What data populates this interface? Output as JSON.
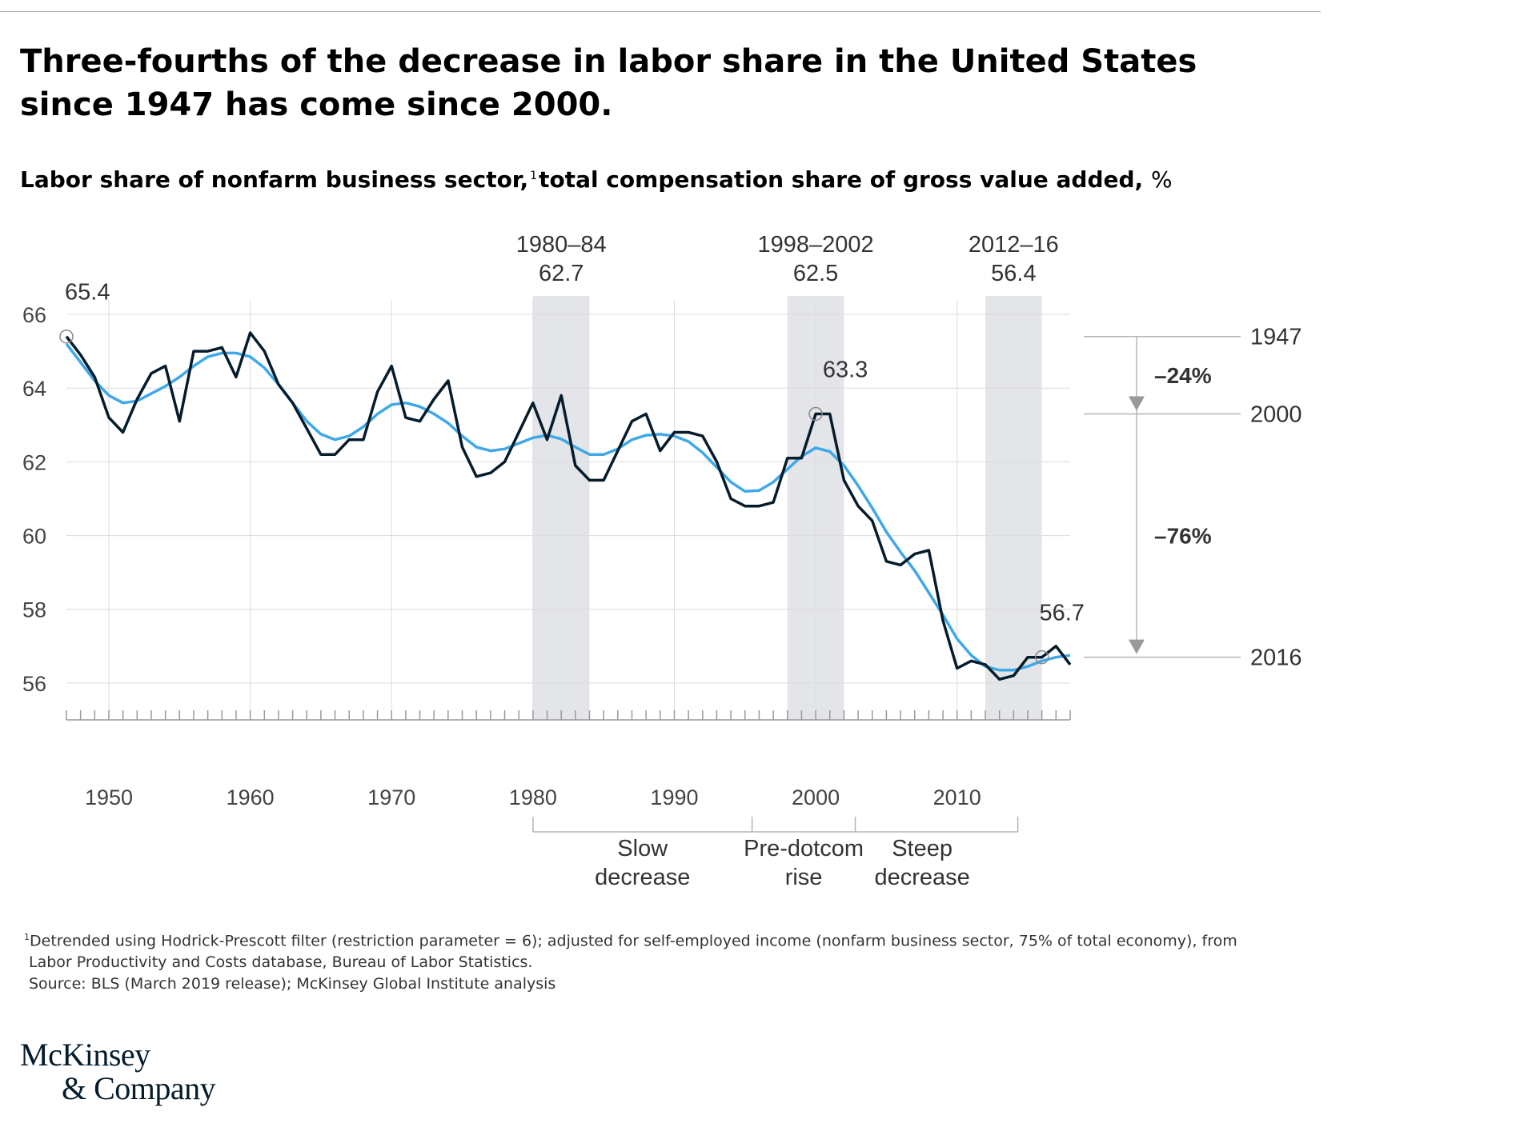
{
  "title": "Three-fourths of the decrease in labor share in the United States since 1947 has come since 2000.",
  "subtitle": {
    "main": "Labor share of nonfarm business sector,",
    "footnote_mark": "1",
    "rest": "total compensation share of gross value added,",
    "unit": "%"
  },
  "chart_data": {
    "type": "line",
    "xlim": [
      1947,
      2018
    ],
    "ylim": [
      55,
      66.5
    ],
    "yticks": [
      66,
      64,
      62,
      60,
      58,
      56
    ],
    "xticks": [
      1950,
      1960,
      1970,
      1980,
      1990,
      2000,
      2010
    ],
    "grid": true,
    "colors": {
      "actual": "#051c2c",
      "trend": "#3fa8e8",
      "shade": "#e3e5e8",
      "annotation": "#999999"
    },
    "series": [
      {
        "key": "actual",
        "x": [
          1947,
          1948,
          1949,
          1950,
          1951,
          1952,
          1953,
          1954,
          1955,
          1956,
          1957,
          1958,
          1959,
          1960,
          1961,
          1962,
          1963,
          1964,
          1965,
          1966,
          1967,
          1968,
          1969,
          1970,
          1971,
          1972,
          1973,
          1974,
          1975,
          1976,
          1977,
          1978,
          1979,
          1980,
          1981,
          1982,
          1983,
          1984,
          1985,
          1986,
          1987,
          1988,
          1989,
          1990,
          1991,
          1992,
          1993,
          1994,
          1995,
          1996,
          1997,
          1998,
          1999,
          2000,
          2001,
          2002,
          2003,
          2004,
          2005,
          2006,
          2007,
          2008,
          2009,
          2010,
          2011,
          2012,
          2013,
          2014,
          2015,
          2016,
          2017,
          2018
        ],
        "values": [
          65.4,
          64.9,
          64.3,
          63.2,
          62.8,
          63.7,
          64.4,
          64.6,
          63.1,
          65.0,
          65.0,
          65.1,
          64.3,
          65.5,
          65.0,
          64.1,
          63.6,
          62.9,
          62.2,
          62.2,
          62.6,
          62.6,
          63.9,
          64.6,
          63.2,
          63.1,
          63.7,
          64.2,
          62.4,
          61.6,
          61.7,
          62.0,
          62.8,
          63.6,
          62.6,
          63.8,
          61.9,
          61.5,
          61.5,
          62.3,
          63.1,
          63.3,
          62.3,
          62.8,
          62.8,
          62.7,
          62.0,
          61.0,
          60.8,
          60.8,
          60.9,
          62.1,
          62.1,
          63.3,
          63.3,
          61.5,
          60.8,
          60.4,
          59.3,
          59.2,
          59.5,
          59.6,
          57.7,
          56.4,
          56.6,
          56.5,
          56.1,
          56.2,
          56.7,
          56.7,
          57.0,
          56.5
        ]
      },
      {
        "key": "trend",
        "x": [
          1947,
          1948,
          1949,
          1950,
          1951,
          1952,
          1953,
          1954,
          1955,
          1956,
          1957,
          1958,
          1959,
          1960,
          1961,
          1962,
          1963,
          1964,
          1965,
          1966,
          1967,
          1968,
          1969,
          1970,
          1971,
          1972,
          1973,
          1974,
          1975,
          1976,
          1977,
          1978,
          1979,
          1980,
          1981,
          1982,
          1983,
          1984,
          1985,
          1986,
          1987,
          1988,
          1989,
          1990,
          1991,
          1992,
          1993,
          1994,
          1995,
          1996,
          1997,
          1998,
          1999,
          2000,
          2001,
          2002,
          2003,
          2004,
          2005,
          2006,
          2007,
          2008,
          2009,
          2010,
          2011,
          2012,
          2013,
          2014,
          2015,
          2016,
          2017,
          2018
        ],
        "values": [
          65.2,
          64.7,
          64.2,
          63.8,
          63.6,
          63.65,
          63.85,
          64.05,
          64.3,
          64.6,
          64.85,
          64.95,
          64.95,
          64.85,
          64.55,
          64.1,
          63.6,
          63.1,
          62.75,
          62.6,
          62.7,
          62.95,
          63.3,
          63.55,
          63.6,
          63.5,
          63.3,
          63.05,
          62.7,
          62.4,
          62.3,
          62.35,
          62.5,
          62.65,
          62.72,
          62.62,
          62.4,
          62.2,
          62.2,
          62.35,
          62.6,
          62.72,
          62.75,
          62.7,
          62.55,
          62.25,
          61.85,
          61.45,
          61.2,
          61.22,
          61.45,
          61.8,
          62.15,
          62.38,
          62.28,
          61.9,
          61.35,
          60.75,
          60.1,
          59.55,
          59.05,
          58.45,
          57.85,
          57.2,
          56.75,
          56.45,
          56.35,
          56.35,
          56.45,
          56.6,
          56.7,
          56.75
        ]
      }
    ],
    "shaded_periods": [
      {
        "start": 1980,
        "end": 1984,
        "label": "1980–84",
        "value": "62.7"
      },
      {
        "start": 1998,
        "end": 2002,
        "label": "1998–2002",
        "value": "62.5"
      },
      {
        "start": 2012,
        "end": 2016,
        "label": "2012–16",
        "value": "56.4"
      }
    ],
    "point_labels": [
      {
        "x": 1947,
        "y": 65.4,
        "label": "65.4"
      },
      {
        "x": 2000,
        "y": 63.3,
        "label": "63.3"
      },
      {
        "x": 2016,
        "y": 56.7,
        "label": "56.7"
      }
    ],
    "reference_lines": [
      {
        "y": 65.4,
        "label": "1947"
      },
      {
        "y": 63.3,
        "label": "2000"
      },
      {
        "y": 56.7,
        "label": "2016"
      }
    ],
    "share_labels": [
      "–24%",
      "–76%"
    ],
    "periods": [
      {
        "start": 1980,
        "end": 1995.5,
        "label_lines": [
          "Slow",
          "decrease"
        ]
      },
      {
        "start": 1995.5,
        "end": 2002.8,
        "label_lines": [
          "Pre-dotcom",
          "rise"
        ]
      },
      {
        "start": 2002.8,
        "end": 2014.3,
        "label_lines": [
          "Steep",
          "decrease"
        ]
      }
    ]
  },
  "footnote": {
    "mark": "1",
    "line1": "Detrended using Hodrick-Prescott filter (restriction parameter = 6); adjusted for self-employed income (nonfarm business sector, 75% of total economy), from",
    "line2": "Labor Productivity and Costs database, Bureau of Labor Statistics.",
    "source": "Source: BLS (March 2019 release); McKinsey Global Institute analysis"
  },
  "logo": {
    "line1": "McKinsey",
    "line2": "& Company"
  }
}
